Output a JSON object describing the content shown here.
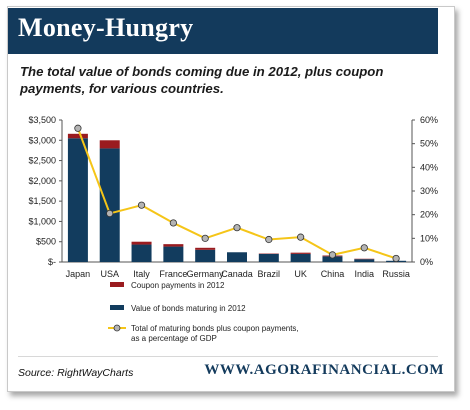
{
  "banner": {
    "title": "Money-Hungry"
  },
  "subtitle": "The total value of bonds coming due in 2012, plus coupon payments, for various countries.",
  "source": "Source: RightWayCharts",
  "site": "WWW.AGORAFINANCIAL.COM",
  "colors": {
    "banner": "#133a5c",
    "bars_bonds": "#123c5e",
    "bars_coupon": "#9a1b1f",
    "line": "#f5c518",
    "marker_fill": "#b4b4b4"
  },
  "chart_data": {
    "type": "bar",
    "categories": [
      "Japan",
      "USA",
      "Italy",
      "France",
      "Germany",
      "Canada",
      "Brazil",
      "UK",
      "China",
      "India",
      "Russia"
    ],
    "series": [
      {
        "name": "Value of bonds maturing in 2012",
        "values": [
          3050,
          2800,
          430,
          380,
          300,
          240,
          200,
          200,
          140,
          70,
          30
        ],
        "axis": "left",
        "kind": "bar-stack-base"
      },
      {
        "name": "Coupon payments in 2012",
        "values": [
          110,
          200,
          70,
          60,
          50,
          0,
          10,
          30,
          20,
          10,
          0
        ],
        "axis": "left",
        "kind": "bar-stack-top"
      },
      {
        "name": "Total of maturing bonds plus coupon payments, as a percentage of GDP",
        "values": [
          56.5,
          20.5,
          24,
          16.5,
          10,
          14.5,
          9.5,
          10.5,
          3,
          6,
          1.5
        ],
        "axis": "right",
        "kind": "line"
      }
    ],
    "y_left": {
      "ticks": [
        "$-",
        "$500",
        "$1,000",
        "$1,500",
        "$2,000",
        "$2,500",
        "$3,000",
        "$3,500"
      ],
      "ylim": [
        0,
        3500
      ]
    },
    "y_right": {
      "ticks": [
        "0%",
        "10%",
        "20%",
        "30%",
        "40%",
        "50%",
        "60%"
      ],
      "ylim": [
        0,
        60
      ]
    },
    "legend": [
      "Coupon payments in 2012",
      "Value of bonds maturing in 2012",
      "Total of maturing bonds plus coupon payments,",
      "as a percentage of GDP"
    ],
    "legend_position": "bottom",
    "grid": false
  }
}
